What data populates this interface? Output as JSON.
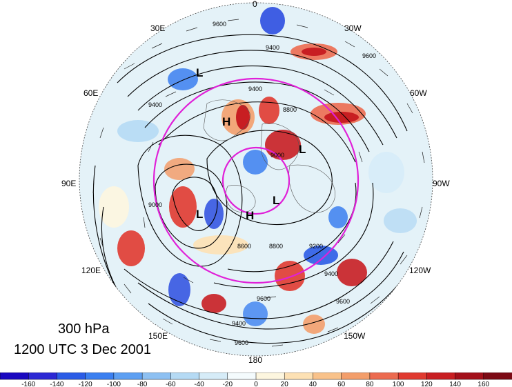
{
  "title": {
    "level": "300 hPa",
    "datetime": "1200 UTC 3 Dec 2001"
  },
  "longitude_labels": [
    "0",
    "30W",
    "60W",
    "90W",
    "120W",
    "150W",
    "180",
    "150E",
    "120E",
    "90E",
    "60E",
    "30E"
  ],
  "pressure_systems": [
    "L",
    "H",
    "L",
    "L",
    "H",
    "L"
  ],
  "contour_labels": [
    "9600",
    "9400",
    "9400",
    "8800",
    "9000",
    "8600",
    "8800",
    "9200",
    "9600",
    "9400",
    "9600",
    "9400",
    "9000",
    "9400",
    "9600",
    "9600"
  ],
  "colorbar": {
    "ticks": [
      "-160",
      "-140",
      "-120",
      "-100",
      "-80",
      "-60",
      "-40",
      "-20",
      "0",
      "20",
      "40",
      "60",
      "80",
      "100",
      "120",
      "140",
      "160"
    ],
    "colors": [
      "#1a08c0",
      "#2c28d4",
      "#2b5ce6",
      "#3b7ff0",
      "#5d9ff2",
      "#8dc0f2",
      "#b5daf4",
      "#d6ecf8",
      "#f4fbfd",
      "#fdf6df",
      "#fde1b4",
      "#f9c28a",
      "#f39e6b",
      "#ec6b50",
      "#e03a30",
      "#c81e22",
      "#a3101a",
      "#7c0a14"
    ]
  },
  "accent_colors": {
    "jet_circle": "#e020d8",
    "contour": "#000000"
  }
}
